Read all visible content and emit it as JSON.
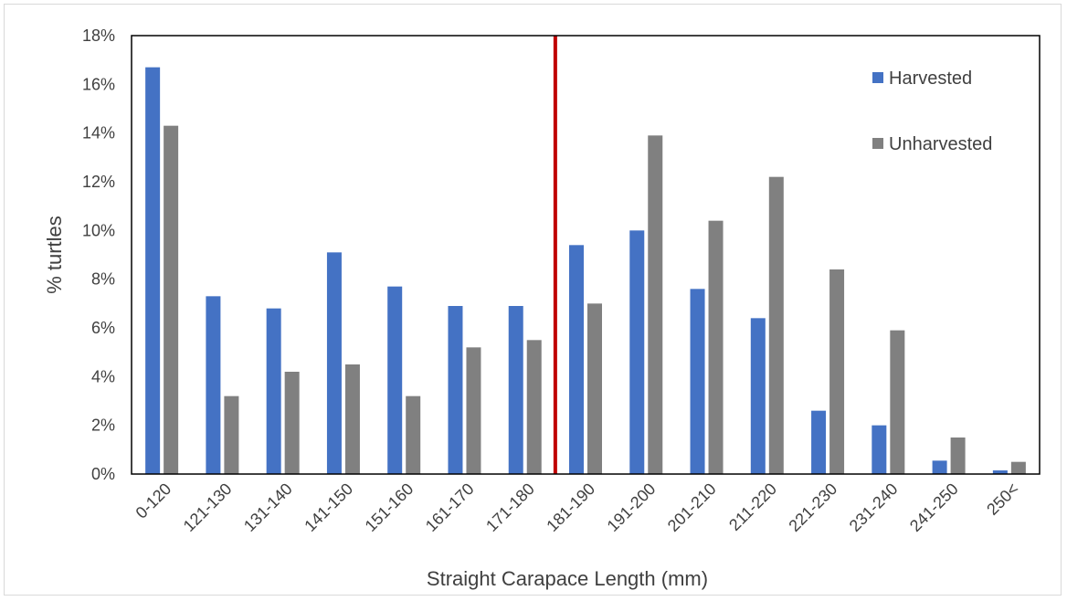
{
  "chart_data": {
    "type": "bar",
    "title": "",
    "xlabel": "Straight Carapace Length (mm)",
    "ylabel": "% turtles",
    "ylim": [
      0,
      18
    ],
    "yticks": [
      "0%",
      "2%",
      "4%",
      "6%",
      "8%",
      "10%",
      "12%",
      "14%",
      "16%",
      "18%"
    ],
    "yticks_values": [
      0,
      2,
      4,
      6,
      8,
      10,
      12,
      14,
      16,
      18
    ],
    "categories": [
      "0-120",
      "121-130",
      "131-140",
      "141-150",
      "151-160",
      "161-170",
      "171-180",
      "181-190",
      "191-200",
      "201-210",
      "211-220",
      "221-230",
      "231-240",
      "241-250",
      "250<"
    ],
    "series": [
      {
        "name": "Harvested",
        "color": "#4472c4",
        "values": [
          16.7,
          7.3,
          6.8,
          9.1,
          7.7,
          6.9,
          6.9,
          9.4,
          10.0,
          7.6,
          6.4,
          2.6,
          2.0,
          0.55,
          0.15
        ]
      },
      {
        "name": "Unharvested",
        "color": "#808080",
        "values": [
          14.3,
          3.2,
          4.2,
          4.5,
          3.2,
          5.2,
          5.5,
          7.0,
          13.9,
          10.4,
          12.2,
          8.4,
          5.9,
          1.5,
          0.5
        ]
      }
    ],
    "reference_line": {
      "color": "#c00000",
      "after_category": "171-180"
    },
    "grid": false,
    "legend_position": "top-right"
  }
}
